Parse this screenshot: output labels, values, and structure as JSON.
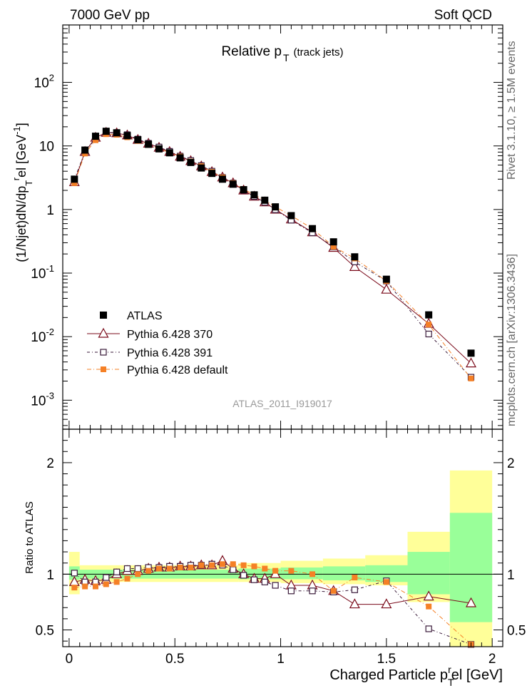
{
  "header": {
    "left": "7000 GeV pp",
    "right": "Soft QCD"
  },
  "side_labels": {
    "rivet": "Rivet 3.1.10, ≥ 1.5M events",
    "mcplots": "mcplots.cern.ch [arXiv:1306.3436]"
  },
  "watermark": "ATLAS_2011_I919017",
  "legend": [
    "ATLAS",
    "Pythia 6.428 370",
    "Pythia 6.428 391",
    "Pythia 6.428 default"
  ],
  "colors": {
    "atlas": "#000000",
    "p370": "#7a0a1a",
    "p391": "#3a1a3a",
    "pdefault": "#f58026",
    "band_outer": "#ffff99",
    "band_inner": "#99ff99"
  },
  "chart_data": [
    {
      "type": "scatter",
      "title": "Relative p_T (track jets)",
      "ylabel": "(1/Njet)dN/dp_T^rel [GeV^-1]",
      "y_scale": "log",
      "ylim": [
        0.00035,
        800
      ],
      "xlim": [
        -0.03,
        2.05
      ],
      "x_tick_labels": [
        "0",
        "0.5",
        "1",
        "1.5",
        "2"
      ],
      "y_tick_labels": [
        "10^-3",
        "10^-2",
        "10^-1",
        "1",
        "10",
        "10^2"
      ],
      "x": [
        0.025,
        0.075,
        0.125,
        0.175,
        0.225,
        0.275,
        0.325,
        0.375,
        0.425,
        0.475,
        0.525,
        0.575,
        0.625,
        0.675,
        0.725,
        0.775,
        0.825,
        0.875,
        0.925,
        0.975,
        1.05,
        1.15,
        1.25,
        1.35,
        1.5,
        1.7,
        1.9
      ],
      "series": [
        {
          "name": "ATLAS",
          "values": [
            3.0,
            8.6,
            14.2,
            17.0,
            16.1,
            14.5,
            12.5,
            10.6,
            9.0,
            7.8,
            6.5,
            5.5,
            4.5,
            3.7,
            3.0,
            2.5,
            2.05,
            1.7,
            1.4,
            1.1,
            0.8,
            0.5,
            0.31,
            0.18,
            0.08,
            0.022,
            0.0055
          ]
        },
        {
          "name": "Pythia 6.428 370",
          "values": [
            2.7,
            8.1,
            13.5,
            16.2,
            15.9,
            14.7,
            12.5,
            10.9,
            9.4,
            8.1,
            6.8,
            5.8,
            4.8,
            3.9,
            3.2,
            2.6,
            2.0,
            1.6,
            1.3,
            1.0,
            0.7,
            0.44,
            0.25,
            0.125,
            0.055,
            0.016,
            0.0038
          ]
        },
        {
          "name": "Pythia 6.428 391",
          "values": [
            3.0,
            8.0,
            13.2,
            16.5,
            16.0,
            15.0,
            12.8,
            11.0,
            9.6,
            8.2,
            6.9,
            5.9,
            4.9,
            4.0,
            3.2,
            2.6,
            2.0,
            1.6,
            1.3,
            0.99,
            0.68,
            0.43,
            0.26,
            0.15,
            0.075,
            0.011,
            0.0023
          ]
        },
        {
          "name": "Pythia 6.428 default",
          "values": [
            2.6,
            7.6,
            12.3,
            15.3,
            15.0,
            13.7,
            12.0,
            10.4,
            9.1,
            7.8,
            6.8,
            5.7,
            4.8,
            3.9,
            3.2,
            2.6,
            2.1,
            1.7,
            1.4,
            1.1,
            0.8,
            0.5,
            0.26,
            0.17,
            0.075,
            0.0155,
            0.0022
          ]
        }
      ]
    },
    {
      "type": "scatter",
      "ylabel": "Ratio to ATLAS",
      "xlabel": "Charged Particle p_T^rel [GeV]",
      "ylim": [
        0.35,
        2.3
      ],
      "xlim": [
        -0.03,
        2.05
      ],
      "x_tick_labels": [
        "0",
        "0.5",
        "1",
        "1.5",
        "2"
      ],
      "y_tick_labels": [
        "0.5",
        "1",
        "2"
      ],
      "x": [
        0.025,
        0.075,
        0.125,
        0.175,
        0.225,
        0.275,
        0.325,
        0.375,
        0.425,
        0.475,
        0.525,
        0.575,
        0.625,
        0.675,
        0.725,
        0.775,
        0.825,
        0.875,
        0.925,
        0.975,
        1.05,
        1.15,
        1.25,
        1.35,
        1.5,
        1.7,
        1.9
      ],
      "bands": {
        "outer": [
          [
            0,
            0.05,
            0.82,
            1.2
          ],
          [
            0.05,
            0.8,
            0.93,
            1.08
          ],
          [
            0.8,
            1.0,
            0.93,
            1.1
          ],
          [
            1.0,
            1.2,
            0.92,
            1.12
          ],
          [
            1.2,
            1.4,
            0.91,
            1.14
          ],
          [
            1.4,
            1.6,
            0.9,
            1.17
          ],
          [
            1.6,
            1.8,
            0.75,
            1.38
          ],
          [
            1.8,
            2.0,
            0.35,
            1.93
          ]
        ],
        "inner": [
          [
            0,
            0.05,
            0.95,
            1.07
          ],
          [
            0.05,
            0.8,
            0.96,
            1.04
          ],
          [
            0.8,
            1.0,
            0.955,
            1.05
          ],
          [
            1.0,
            1.2,
            0.955,
            1.06
          ],
          [
            1.2,
            1.4,
            0.945,
            1.07
          ],
          [
            1.4,
            1.6,
            0.93,
            1.08
          ],
          [
            1.6,
            1.8,
            0.82,
            1.2
          ],
          [
            1.8,
            2.0,
            0.57,
            1.55
          ]
        ]
      },
      "series": [
        {
          "name": "Pythia 6.428 370",
          "values": [
            0.93,
            0.95,
            0.94,
            0.95,
            1.0,
            1.03,
            1.03,
            1.05,
            1.06,
            1.06,
            1.07,
            1.07,
            1.08,
            1.08,
            1.12,
            1.05,
            1.0,
            0.96,
            0.96,
            1.0,
            0.9,
            0.9,
            0.85,
            0.73,
            0.73,
            0.8,
            0.74
          ]
        },
        {
          "name": "Pythia 6.428 391",
          "values": [
            1.01,
            0.93,
            0.93,
            0.97,
            1.02,
            1.05,
            1.05,
            1.06,
            1.06,
            1.07,
            1.07,
            1.08,
            1.08,
            1.09,
            1.08,
            1.04,
            0.99,
            0.95,
            0.93,
            0.9,
            0.85,
            0.85,
            0.84,
            0.86,
            0.94,
            0.51,
            0.37
          ]
        },
        {
          "name": "Pythia 6.428 default",
          "values": [
            0.88,
            0.89,
            0.89,
            0.91,
            0.93,
            0.96,
            1.0,
            1.03,
            1.05,
            1.05,
            1.06,
            1.06,
            1.08,
            1.08,
            1.09,
            1.09,
            1.08,
            1.07,
            1.05,
            1.03,
            1.03,
            1.0,
            0.85,
            0.97,
            0.93,
            0.71,
            0.37
          ]
        }
      ]
    }
  ]
}
